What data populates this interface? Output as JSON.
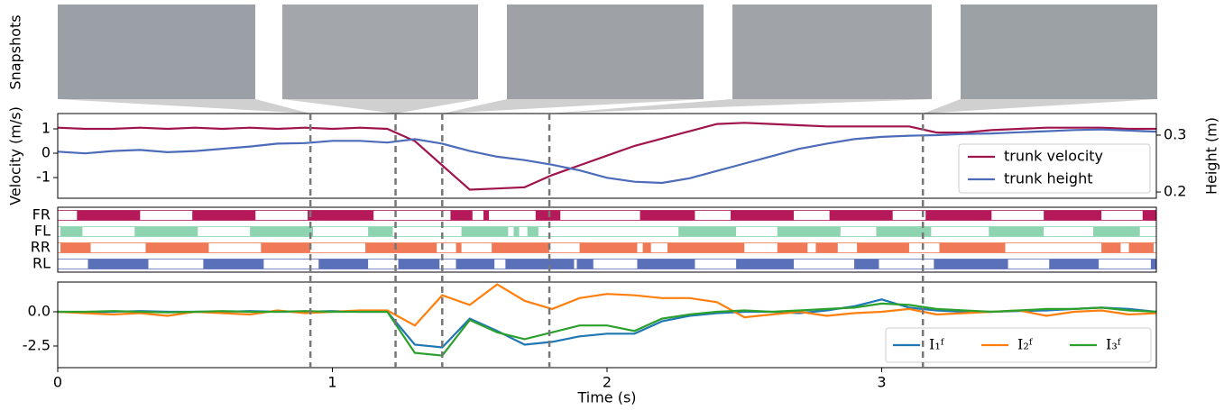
{
  "snapshots_label": "Snapshots",
  "events": [
    0.92,
    1.23,
    1.4,
    1.79,
    3.15
  ],
  "chart_data": [
    {
      "type": "line",
      "ylabel": "Velocity (m/s)",
      "y2label": "Height (m)",
      "x": [
        0,
        0.1,
        0.2,
        0.3,
        0.4,
        0.5,
        0.6,
        0.7,
        0.8,
        0.9,
        1.0,
        1.1,
        1.2,
        1.3,
        1.4,
        1.5,
        1.6,
        1.7,
        1.8,
        1.9,
        2.0,
        2.1,
        2.2,
        2.3,
        2.4,
        2.5,
        2.6,
        2.7,
        2.8,
        2.9,
        3.0,
        3.1,
        3.2,
        3.3,
        3.4,
        3.5,
        3.6,
        3.7,
        3.8,
        3.9,
        4.0
      ],
      "xlim": [
        0,
        4.0
      ],
      "ylim": [
        -1.85,
        1.63
      ],
      "yticks": [
        1,
        0,
        -1
      ],
      "y2lim": [
        0.189,
        0.338
      ],
      "y2ticks": [
        0.2,
        0.3
      ],
      "legend": "lower right",
      "series": [
        {
          "name": "trunk velocity",
          "color": "#a0144d",
          "values": [
            1.05,
            1.0,
            1.0,
            1.05,
            1.0,
            1.05,
            1.0,
            1.05,
            1.0,
            1.05,
            1.0,
            1.05,
            1.0,
            0.5,
            -0.5,
            -1.5,
            -1.45,
            -1.4,
            -0.9,
            -0.5,
            -0.1,
            0.3,
            0.6,
            0.9,
            1.2,
            1.25,
            1.2,
            1.15,
            1.1,
            1.1,
            1.1,
            1.1,
            0.85,
            0.85,
            0.95,
            1.0,
            1.05,
            1.05,
            1.05,
            1.0,
            1.0
          ]
        },
        {
          "name": "trunk height",
          "color": "#4c6bb8",
          "axis": "y2",
          "values": [
            0.271,
            0.268,
            0.272,
            0.274,
            0.27,
            0.272,
            0.276,
            0.28,
            0.285,
            0.286,
            0.29,
            0.29,
            0.287,
            0.293,
            0.285,
            0.272,
            0.262,
            0.256,
            0.248,
            0.238,
            0.225,
            0.218,
            0.216,
            0.224,
            0.237,
            0.25,
            0.263,
            0.276,
            0.285,
            0.293,
            0.297,
            0.299,
            0.3,
            0.302,
            0.303,
            0.305,
            0.307,
            0.309,
            0.31,
            0.308,
            0.306
          ]
        }
      ]
    },
    {
      "type": "gait",
      "categories": [
        "FR",
        "FL",
        "RR",
        "RL"
      ],
      "xlim": [
        0,
        4.0
      ],
      "series": [
        {
          "color": "#b5195a",
          "intervals": [
            [
              0.07,
              0.3
            ],
            [
              0.49,
              0.72
            ],
            [
              0.91,
              1.15
            ],
            [
              1.43,
              1.51
            ],
            [
              1.55,
              1.57
            ],
            [
              1.74,
              1.83
            ],
            [
              2.12,
              2.32
            ],
            [
              2.45,
              2.68
            ],
            [
              2.81,
              3.04
            ],
            [
              3.16,
              3.4
            ],
            [
              3.59,
              3.8
            ],
            [
              3.95,
              4.0
            ]
          ]
        },
        {
          "color": "#8fd4b0",
          "intervals": [
            [
              0.01,
              0.09
            ],
            [
              0.28,
              0.51
            ],
            [
              0.7,
              0.93
            ],
            [
              1.13,
              1.22
            ],
            [
              1.47,
              1.64
            ],
            [
              1.66,
              1.68
            ],
            [
              1.71,
              1.75
            ],
            [
              2.26,
              2.47
            ],
            [
              2.62,
              2.85
            ],
            [
              2.98,
              3.18
            ],
            [
              3.39,
              3.59
            ],
            [
              3.77,
              3.94
            ]
          ]
        },
        {
          "color": "#f07a57",
          "intervals": [
            [
              0.01,
              0.12
            ],
            [
              0.32,
              0.55
            ],
            [
              0.74,
              0.92
            ],
            [
              1.12,
              1.38
            ],
            [
              1.45,
              1.47
            ],
            [
              1.58,
              1.79
            ],
            [
              1.9,
              2.11
            ],
            [
              2.13,
              2.16
            ],
            [
              2.22,
              2.5
            ],
            [
              2.62,
              2.73
            ],
            [
              2.76,
              2.84
            ],
            [
              2.91,
              3.1
            ],
            [
              3.21,
              3.45
            ],
            [
              3.8,
              3.87
            ],
            [
              3.9,
              3.99
            ]
          ]
        },
        {
          "color": "#5a70b8",
          "intervals": [
            [
              0.11,
              0.33
            ],
            [
              0.53,
              0.75
            ],
            [
              0.95,
              1.13
            ],
            [
              1.24,
              1.39
            ],
            [
              1.45,
              1.59
            ],
            [
              1.63,
              1.88
            ],
            [
              1.89,
              1.95
            ],
            [
              2.11,
              2.32
            ],
            [
              2.47,
              2.68
            ],
            [
              2.9,
              2.99
            ],
            [
              3.19,
              3.46
            ],
            [
              3.61,
              3.79
            ],
            [
              3.98,
              4.0
            ]
          ]
        }
      ]
    },
    {
      "type": "line",
      "xlabel": "Time (s)",
      "x": [
        0,
        0.1,
        0.2,
        0.3,
        0.4,
        0.5,
        0.6,
        0.7,
        0.8,
        0.9,
        1.0,
        1.1,
        1.2,
        1.3,
        1.4,
        1.5,
        1.6,
        1.7,
        1.8,
        1.9,
        2.0,
        2.1,
        2.2,
        2.3,
        2.4,
        2.5,
        2.6,
        2.7,
        2.8,
        2.9,
        3.0,
        3.1,
        3.2,
        3.3,
        3.4,
        3.5,
        3.6,
        3.7,
        3.8,
        3.9,
        4.0
      ],
      "xlim": [
        0,
        4.0
      ],
      "xticks": [
        0,
        1,
        2,
        3
      ],
      "ylim": [
        -4.08,
        2.17
      ],
      "yticks": [
        {
          "value": 0,
          "label": "0.0"
        },
        -2.5
      ],
      "legend": "lower right",
      "series": [
        {
          "name": "I₁ᶠ",
          "color": "#1f77b4",
          "values": [
            0,
            -0.05,
            0,
            0.05,
            0,
            0,
            0,
            0.05,
            0,
            0,
            0.05,
            0,
            0,
            -2.4,
            -2.6,
            -0.5,
            -1.4,
            -2.4,
            -2.2,
            -1.8,
            -1.6,
            -1.6,
            -0.7,
            -0.3,
            -0.1,
            0,
            0,
            -0.1,
            0.1,
            0.4,
            0.9,
            0.3,
            0.1,
            0,
            0,
            0.05,
            0.1,
            0.2,
            0.3,
            0.2,
            0
          ]
        },
        {
          "name": "I₂ᶠ",
          "color": "#ff7f0e",
          "values": [
            0,
            -0.1,
            -0.2,
            -0.1,
            -0.3,
            0,
            -0.1,
            -0.2,
            0.1,
            -0.1,
            0,
            0.1,
            0.1,
            -1.0,
            1.2,
            0.5,
            2.0,
            0.8,
            0.2,
            1.0,
            1.3,
            1.2,
            1.0,
            1.0,
            0.7,
            -0.4,
            -0.2,
            0,
            -0.3,
            -0.1,
            0,
            0.2,
            -0.2,
            -0.1,
            0,
            0.1,
            -0.3,
            0,
            0.1,
            -0.2,
            -0.1
          ]
        },
        {
          "name": "I₃ᶠ",
          "color": "#2ca02c",
          "values": [
            0,
            0,
            0.05,
            0,
            -0.05,
            0,
            0.05,
            0,
            0,
            0.05,
            0,
            0,
            0,
            -3.0,
            -3.2,
            -0.6,
            -1.5,
            -2.0,
            -1.5,
            -1.0,
            -1.0,
            -1.4,
            -0.5,
            -0.2,
            0,
            0.1,
            0,
            0.1,
            0.2,
            0.3,
            0.6,
            0.5,
            0.2,
            0.1,
            0,
            0.1,
            0.2,
            0.2,
            0.3,
            0.1,
            0
          ]
        }
      ]
    }
  ]
}
